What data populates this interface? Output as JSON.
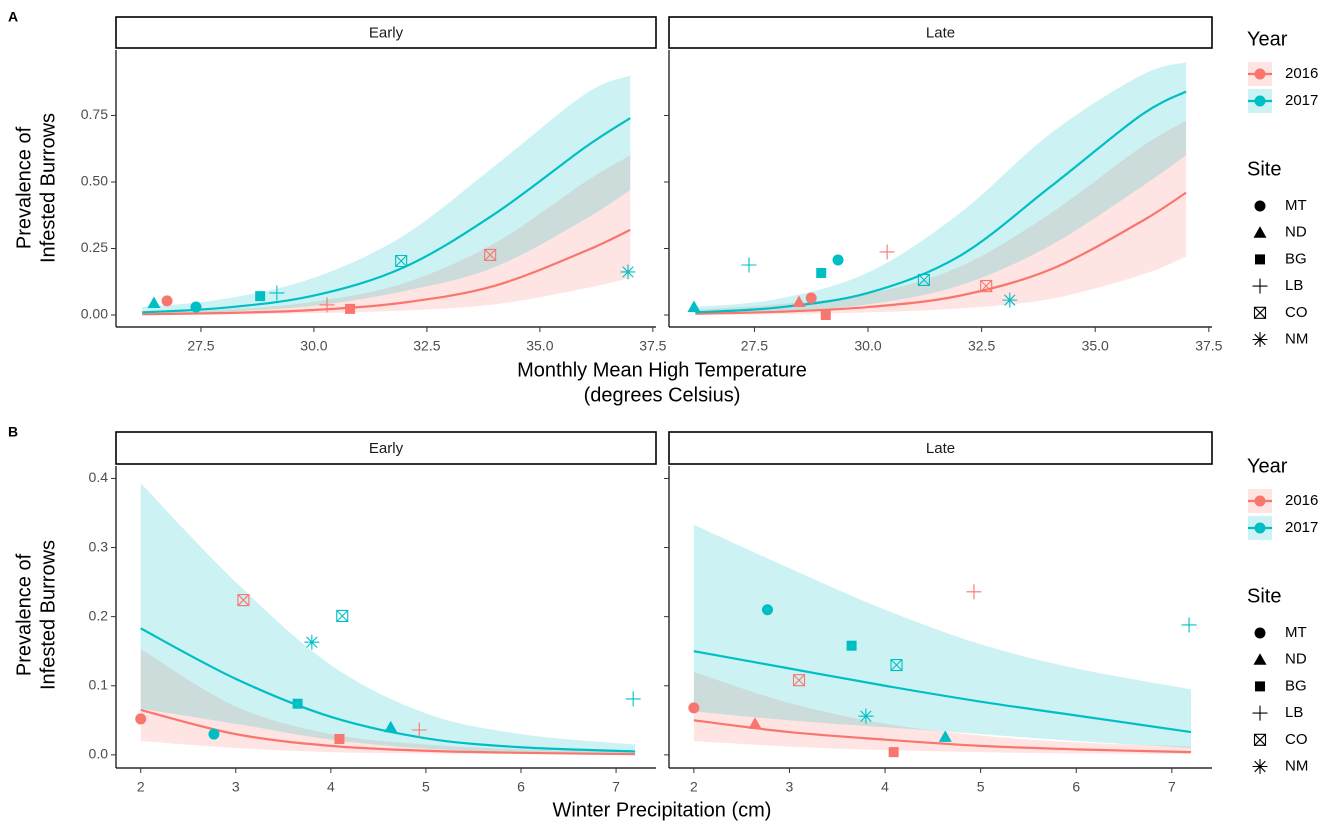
{
  "chart_data": [
    {
      "type": "scatter",
      "tag": "A",
      "x_label": [
        "Monthly Mean High Temperature",
        "(degrees Celsius)"
      ],
      "y_label": [
        "Prevalence of",
        "Infested Burrows"
      ],
      "xlim": [
        25.62,
        37.57
      ],
      "xticks": [
        27.5,
        {
          "value": 30,
          "label": "30.0"
        },
        32.5,
        {
          "value": 35,
          "label": "35.0"
        },
        37.5
      ],
      "ylim": [
        -0.045,
        0.996
      ],
      "yticks": [
        {
          "value": 0,
          "label": "0.00"
        },
        0.25,
        {
          "value": 0.5,
          "label": "0.50"
        },
        0.75
      ],
      "legend_title": "Year",
      "site_legend_title": "Site",
      "series": [
        {
          "name": "2016",
          "color": "#f8766d"
        },
        {
          "name": "2017",
          "color": "#00bfc4"
        }
      ],
      "sites": [
        {
          "name": "MT",
          "shape": "circle"
        },
        {
          "name": "ND",
          "shape": "triangle"
        },
        {
          "name": "BG",
          "shape": "square"
        },
        {
          "name": "LB",
          "shape": "plus"
        },
        {
          "name": "CO",
          "shape": "boxx"
        },
        {
          "name": "NM",
          "shape": "asterisk"
        }
      ],
      "facets": [
        {
          "title": "Early",
          "curve_x": [
            26.2,
            28,
            30,
            32,
            34,
            36,
            37
          ],
          "fits": [
            {
              "values": [
                0.003,
                0.0075,
                0.019,
                0.047,
                0.11,
                0.24,
                0.32
              ],
              "lower": [
                0.001,
                0.002,
                0.007,
                0.017,
                0.04,
                0.1,
                0.14
              ],
              "upper": [
                0.01,
                0.02,
                0.05,
                0.12,
                0.27,
                0.5,
                0.6
              ],
              "points": {
                "x": [
                  26.75,
                  30.29,
                  30.8,
                  33.9
                ],
                "y": [
                  0.053,
                  0.038,
                  0.023,
                  0.226
                ],
                "site": [
                  "MT",
                  "LB",
                  "BG",
                  "CO"
                ]
              }
            },
            {
              "values": [
                0.01,
                0.027,
                0.073,
                0.18,
                0.38,
                0.63,
                0.74
              ],
              "lower": [
                0.003,
                0.012,
                0.035,
                0.09,
                0.18,
                0.36,
                0.47
              ],
              "upper": [
                0.03,
                0.06,
                0.14,
                0.3,
                0.56,
                0.83,
                0.9
              ],
              "points": {
                "x": [
                  26.46,
                  27.39,
                  28.81,
                  29.18,
                  31.93,
                  36.95
                ],
                "y": [
                  0.045,
                  0.03,
                  0.071,
                  0.083,
                  0.203,
                  0.162
                ],
                "site": [
                  "ND",
                  "MT",
                  "BG",
                  "LB",
                  "CO",
                  "NM"
                ]
              }
            }
          ]
        },
        {
          "title": "Late",
          "curve_x": [
            26.2,
            28,
            30,
            32,
            34,
            36,
            37
          ],
          "fits": [
            {
              "values": [
                0.005,
                0.012,
                0.03,
                0.072,
                0.17,
                0.35,
                0.46
              ],
              "lower": [
                0.001,
                0.003,
                0.01,
                0.025,
                0.06,
                0.15,
                0.22
              ],
              "upper": [
                0.02,
                0.04,
                0.08,
                0.18,
                0.38,
                0.63,
                0.73
              ],
              "points": {
                "x": [
                  28.48,
                  28.75,
                  29.07,
                  30.42,
                  32.6
                ],
                "y": [
                  0.049,
                  0.064,
                  0.0,
                  0.237,
                  0.109
                ],
                "site": [
                  "ND",
                  "MT",
                  "BG",
                  "LB",
                  "CO"
                ]
              }
            },
            {
              "values": [
                0.01,
                0.028,
                0.083,
                0.22,
                0.48,
                0.75,
                0.84
              ],
              "lower": [
                0.003,
                0.012,
                0.04,
                0.11,
                0.26,
                0.48,
                0.6
              ],
              "upper": [
                0.03,
                0.06,
                0.16,
                0.38,
                0.68,
                0.9,
                0.95
              ],
              "points": {
                "x": [
                  26.17,
                  27.38,
                  28.97,
                  29.34,
                  31.23,
                  33.12
                ],
                "y": [
                  0.03,
                  0.188,
                  0.158,
                  0.207,
                  0.132,
                  0.056
                ],
                "site": [
                  "ND",
                  "LB",
                  "BG",
                  "MT",
                  "CO",
                  "NM"
                ]
              }
            }
          ]
        }
      ]
    },
    {
      "type": "scatter",
      "tag": "B",
      "x_label": [
        "Winter Precipitation (cm)"
      ],
      "y_label": [
        "Prevalence of",
        "Infested Burrows"
      ],
      "xlim": [
        1.74,
        7.42
      ],
      "xticks": [
        2,
        3,
        4,
        5,
        6,
        7
      ],
      "ylim": [
        -0.019,
        0.418
      ],
      "yticks": [
        {
          "value": 0,
          "label": "0.0"
        },
        0.1,
        0.2,
        0.3,
        0.4
      ],
      "legend_title": "Year",
      "site_legend_title": "Site",
      "series": [
        {
          "name": "2016",
          "color": "#f8766d"
        },
        {
          "name": "2017",
          "color": "#00bfc4"
        }
      ],
      "sites": [
        {
          "name": "MT",
          "shape": "circle"
        },
        {
          "name": "ND",
          "shape": "triangle"
        },
        {
          "name": "BG",
          "shape": "square"
        },
        {
          "name": "LB",
          "shape": "plus"
        },
        {
          "name": "CO",
          "shape": "boxx"
        },
        {
          "name": "NM",
          "shape": "asterisk"
        }
      ],
      "facets": [
        {
          "title": "Early",
          "curve_x": [
            2,
            3,
            4,
            5,
            6,
            7.2
          ],
          "fits": [
            {
              "values": [
                0.065,
                0.03,
                0.013,
                0.006,
                0.003,
                0.001
              ],
              "lower": [
                0.02,
                0.01,
                0.004,
                0.002,
                0.001,
                0.0003
              ],
              "upper": [
                0.153,
                0.07,
                0.03,
                0.015,
                0.008,
                0.004
              ],
              "points": {
                "x": [
                  2.0,
                  3.08,
                  4.09,
                  4.93
                ],
                "y": [
                  0.052,
                  0.224,
                  0.023,
                  0.036
                ],
                "site": [
                  "MT",
                  "CO",
                  "BG",
                  "LB"
                ]
              }
            },
            {
              "values": [
                0.183,
                0.11,
                0.055,
                0.024,
                0.011,
                0.005
              ],
              "lower": [
                0.067,
                0.045,
                0.022,
                0.009,
                0.004,
                0.001
              ],
              "upper": [
                0.393,
                0.25,
                0.13,
                0.06,
                0.03,
                0.015
              ],
              "points": {
                "x": [
                  2.77,
                  3.65,
                  3.8,
                  4.12,
                  4.63,
                  7.18
                ],
                "y": [
                  0.03,
                  0.074,
                  0.163,
                  0.201,
                  0.04,
                  0.081
                ],
                "site": [
                  "MT",
                  "BG",
                  "NM",
                  "CO",
                  "ND",
                  "LB"
                ]
              }
            }
          ]
        },
        {
          "title": "Late",
          "curve_x": [
            2,
            3,
            4,
            5,
            6,
            7.2
          ],
          "fits": [
            {
              "values": [
                0.05,
                0.033,
                0.022,
                0.013,
                0.008,
                0.004
              ],
              "lower": [
                0.02,
                0.012,
                0.007,
                0.004,
                0.002,
                0.001
              ],
              "upper": [
                0.12,
                0.075,
                0.045,
                0.028,
                0.018,
                0.012
              ],
              "points": {
                "x": [
                  2.0,
                  2.64,
                  3.1,
                  4.09,
                  4.93
                ],
                "y": [
                  0.068,
                  0.045,
                  0.108,
                  0.004,
                  0.236
                ],
                "site": [
                  "MT",
                  "ND",
                  "CO",
                  "BG",
                  "LB"
                ]
              }
            },
            {
              "values": [
                0.15,
                0.125,
                0.1,
                0.077,
                0.057,
                0.033
              ],
              "lower": [
                0.063,
                0.05,
                0.04,
                0.03,
                0.02,
                0.01
              ],
              "upper": [
                0.333,
                0.27,
                0.21,
                0.16,
                0.125,
                0.095
              ],
              "points": {
                "x": [
                  2.77,
                  3.65,
                  3.8,
                  4.12,
                  4.63,
                  7.18
                ],
                "y": [
                  0.21,
                  0.158,
                  0.056,
                  0.13,
                  0.026,
                  0.188
                ],
                "site": [
                  "MT",
                  "BG",
                  "NM",
                  "CO",
                  "ND",
                  "LB"
                ]
              }
            }
          ]
        }
      ]
    }
  ]
}
